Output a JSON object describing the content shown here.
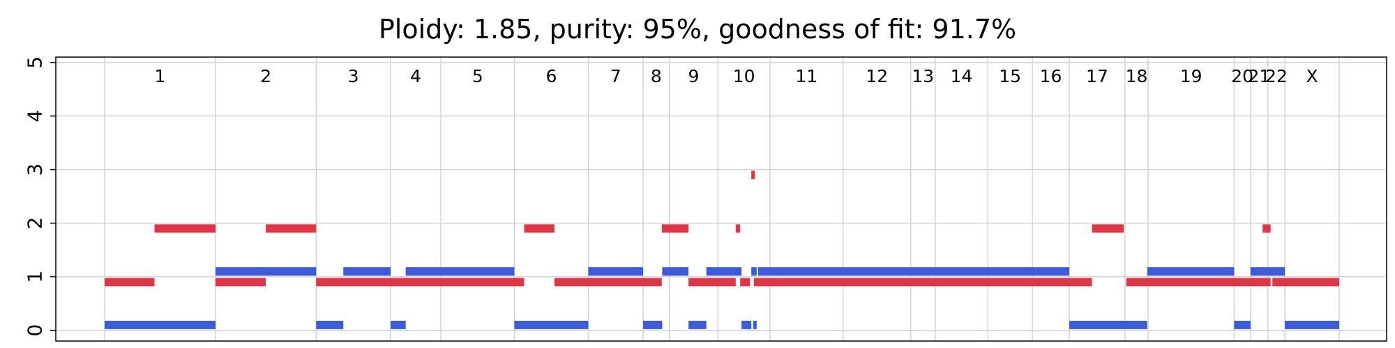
{
  "chart_data": {
    "type": "segments",
    "title": "Ploidy: 1.85, purity: 95%, goodness of fit: 91.7%",
    "xlabel": "",
    "ylabel": "",
    "ylim": [
      -0.2,
      5.1
    ],
    "yticks": [
      0,
      1,
      2,
      3,
      4,
      5
    ],
    "grid": true,
    "colors": {
      "major": "#e03546",
      "minor": "#3b5bdb"
    },
    "chromosomes": [
      {
        "name": "1",
        "start": 0,
        "end": 249
      },
      {
        "name": "2",
        "start": 249,
        "end": 475
      },
      {
        "name": "3",
        "start": 475,
        "end": 642
      },
      {
        "name": "4",
        "start": 642,
        "end": 755
      },
      {
        "name": "5",
        "start": 755,
        "end": 920
      },
      {
        "name": "6",
        "start": 920,
        "end": 1086
      },
      {
        "name": "7",
        "start": 1086,
        "end": 1209
      },
      {
        "name": "8",
        "start": 1209,
        "end": 1268
      },
      {
        "name": "9",
        "start": 1268,
        "end": 1377
      },
      {
        "name": "10",
        "start": 1377,
        "end": 1494
      },
      {
        "name": "11",
        "start": 1494,
        "end": 1658
      },
      {
        "name": "12",
        "start": 1658,
        "end": 1810
      },
      {
        "name": "13",
        "start": 1810,
        "end": 1865
      },
      {
        "name": "14",
        "start": 1865,
        "end": 1983
      },
      {
        "name": "15",
        "start": 1983,
        "end": 2083
      },
      {
        "name": "16",
        "start": 2083,
        "end": 2166
      },
      {
        "name": "17",
        "start": 2166,
        "end": 2291
      },
      {
        "name": "18",
        "start": 2291,
        "end": 2343
      },
      {
        "name": "19",
        "start": 2343,
        "end": 2536
      },
      {
        "name": "20",
        "start": 2536,
        "end": 2573
      },
      {
        "name": "21",
        "start": 2573,
        "end": 2612
      },
      {
        "name": "22",
        "start": 2612,
        "end": 2650
      },
      {
        "name": "X",
        "start": 2650,
        "end": 2772
      }
    ],
    "series": [
      {
        "key": "major",
        "segments": [
          {
            "start": 0,
            "end": 112,
            "value": 0.9
          },
          {
            "start": 112,
            "end": 249,
            "value": 1.9
          },
          {
            "start": 249,
            "end": 362,
            "value": 0.9
          },
          {
            "start": 362,
            "end": 475,
            "value": 1.9
          },
          {
            "start": 475,
            "end": 942,
            "value": 0.9
          },
          {
            "start": 942,
            "end": 1010,
            "value": 1.9
          },
          {
            "start": 1010,
            "end": 1251,
            "value": 0.9
          },
          {
            "start": 1251,
            "end": 1311,
            "value": 1.9
          },
          {
            "start": 1311,
            "end": 1417,
            "value": 0.9
          },
          {
            "start": 1417,
            "end": 1427,
            "value": 1.9
          },
          {
            "start": 1427,
            "end": 1449,
            "value": 0.9
          },
          {
            "start": 1452,
            "end": 1460,
            "value": 2.9
          },
          {
            "start": 1458,
            "end": 2217,
            "value": 0.9
          },
          {
            "start": 2217,
            "end": 2288,
            "value": 1.9
          },
          {
            "start": 2294,
            "end": 2618,
            "value": 0.9
          },
          {
            "start": 2600,
            "end": 2618,
            "value": 1.9
          },
          {
            "start": 2622,
            "end": 2772,
            "value": 0.9
          }
        ]
      },
      {
        "key": "minor",
        "segments": [
          {
            "start": 0,
            "end": 249,
            "value": 0.1
          },
          {
            "start": 249,
            "end": 475,
            "value": 1.1
          },
          {
            "start": 475,
            "end": 536,
            "value": 0.1
          },
          {
            "start": 536,
            "end": 642,
            "value": 1.1
          },
          {
            "start": 642,
            "end": 676,
            "value": 0.1
          },
          {
            "start": 676,
            "end": 920,
            "value": 1.1
          },
          {
            "start": 920,
            "end": 1086,
            "value": 0.1
          },
          {
            "start": 1086,
            "end": 1209,
            "value": 1.1
          },
          {
            "start": 1209,
            "end": 1252,
            "value": 0.1
          },
          {
            "start": 1252,
            "end": 1311,
            "value": 1.1
          },
          {
            "start": 1311,
            "end": 1351,
            "value": 0.1
          },
          {
            "start": 1351,
            "end": 1430,
            "value": 1.1
          },
          {
            "start": 1430,
            "end": 1452,
            "value": 0.1
          },
          {
            "start": 1452,
            "end": 1464,
            "value": 1.1
          },
          {
            "start": 1456,
            "end": 1464,
            "value": 0.1
          },
          {
            "start": 1467,
            "end": 2166,
            "value": 1.1
          },
          {
            "start": 2166,
            "end": 2341,
            "value": 0.1
          },
          {
            "start": 2341,
            "end": 2536,
            "value": 1.1
          },
          {
            "start": 2536,
            "end": 2573,
            "value": 0.1
          },
          {
            "start": 2573,
            "end": 2650,
            "value": 1.1
          },
          {
            "start": 2650,
            "end": 2772,
            "value": 0.1
          }
        ]
      }
    ]
  }
}
